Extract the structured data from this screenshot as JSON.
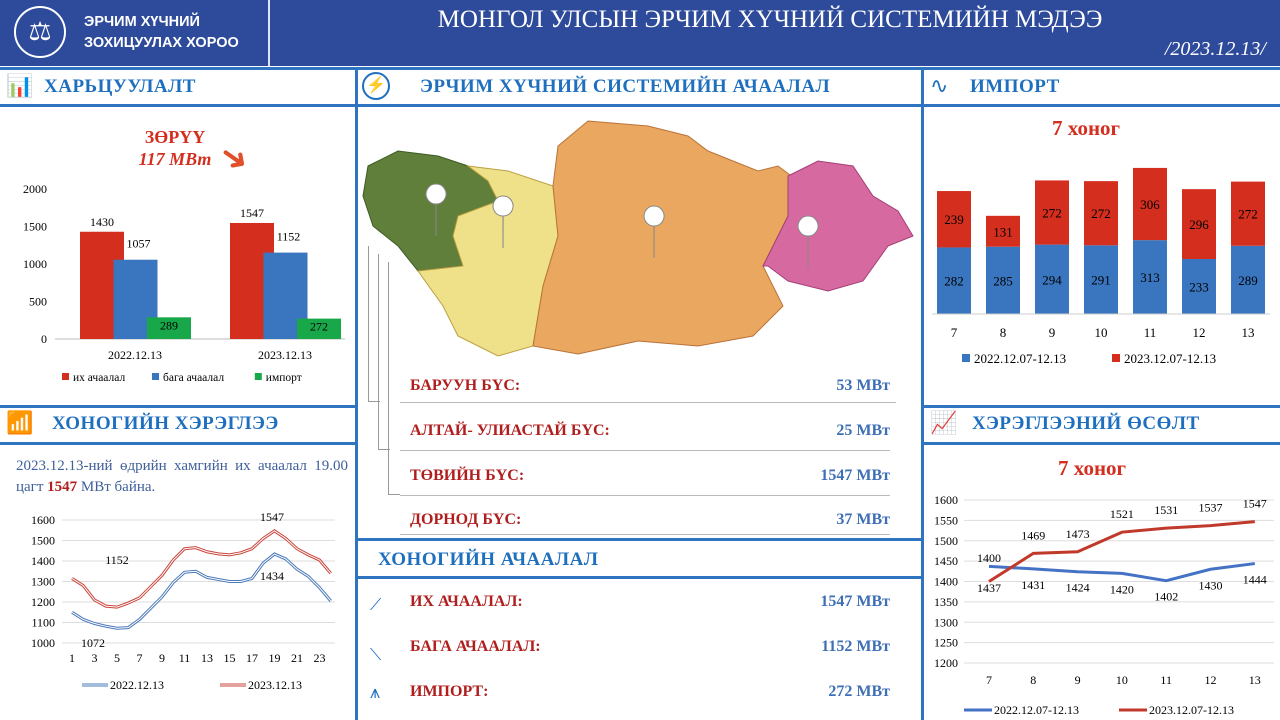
{
  "header": {
    "org_line1": "ЭРЧИМ ХҮЧНИЙ",
    "org_line2": "ЗОХИЦУУЛАХ ХОРОО",
    "title": "МОНГОЛ УЛСЫН ЭРЧИМ ХҮЧНИЙ СИСТЕМИЙН МЭДЭЭ",
    "date": "/2023.12.13/"
  },
  "panels": {
    "comparison": {
      "title": "ХАРЬЦУУЛАЛТ",
      "diff_label": "ЗӨРҮҮ",
      "diff_value": "117 МВт"
    },
    "daily_consumption": {
      "title": "ХОНОГИЙН ХЭРЭГЛЭЭ",
      "note_pre": "2023.12.13-ний өдрийн хамгийн их ачаалал 19.00 цагт ",
      "note_value": "1547",
      "note_post": " МВт байна."
    },
    "system_load": {
      "title": "ЭРЧИМ ХҮЧНИЙ СИСТЕМИЙН АЧААЛАЛ",
      "regions": [
        {
          "label": "БАРУУН БҮС:",
          "value": "53 МВт"
        },
        {
          "label": "АЛТАЙ- УЛИАСТАЙ БҮС:",
          "value": "25 МВт"
        },
        {
          "label": "ТӨВИЙН БҮС:",
          "value": "1547 МВт"
        },
        {
          "label": "ДОРНОД БҮС:",
          "value": "37 МВт"
        }
      ]
    },
    "daily_load": {
      "title": "ХОНОГИЙН АЧААЛАЛ",
      "items": [
        {
          "label": "ИХ АЧААЛАЛ:",
          "value": "1547 МВт",
          "icon": "chart-up-icon"
        },
        {
          "label": "БАГА АЧААЛАЛ:",
          "value": "1152 МВт",
          "icon": "chart-down-icon"
        },
        {
          "label": "ИМПОРТ:",
          "value": "272 МВт",
          "icon": "power-tower-icon"
        }
      ]
    },
    "import": {
      "title": "ИМПОРТ",
      "subtitle": "7 хоног"
    },
    "growth": {
      "title": "ХЭРЭГЛЭЭНИЙ ӨСӨЛТ",
      "subtitle": "7 хоног"
    }
  },
  "colors": {
    "header": "#2e4b9b",
    "accent": "#1f6fbf",
    "red": "#d42e1f",
    "blue": "#3a76bf",
    "green": "#18a84a"
  },
  "chart_data": [
    {
      "id": "comparison",
      "type": "bar",
      "categories": [
        "2022.12.13",
        "2023.12.13"
      ],
      "ylim": [
        0,
        2000
      ],
      "yticks": [
        0,
        500,
        1000,
        1500,
        2000
      ],
      "series": [
        {
          "name": "их ачаалал",
          "values": [
            1430,
            1547
          ]
        },
        {
          "name": "бага ачаалал",
          "values": [
            1057,
            1152
          ]
        },
        {
          "name": "импорт",
          "values": [
            289,
            272
          ]
        }
      ],
      "legend": "bottom"
    },
    {
      "id": "hourly",
      "type": "line",
      "x": [
        1,
        2,
        3,
        4,
        5,
        6,
        7,
        8,
        9,
        10,
        11,
        12,
        13,
        14,
        15,
        16,
        17,
        18,
        19,
        20,
        21,
        22,
        23,
        24
      ],
      "xticks": [
        1,
        3,
        5,
        7,
        9,
        11,
        13,
        15,
        17,
        19,
        21,
        23
      ],
      "ylim": [
        1000,
        1600
      ],
      "yticks": [
        1000,
        1100,
        1200,
        1300,
        1400,
        1500,
        1600
      ],
      "series": [
        {
          "name": "2022.12.13",
          "values": [
            1150,
            1115,
            1095,
            1082,
            1072,
            1075,
            1115,
            1170,
            1225,
            1295,
            1345,
            1350,
            1320,
            1310,
            1300,
            1300,
            1315,
            1390,
            1434,
            1410,
            1360,
            1325,
            1270,
            1205
          ]
        },
        {
          "name": "2023.12.13",
          "values": [
            1315,
            1280,
            1210,
            1180,
            1175,
            1195,
            1220,
            1275,
            1330,
            1405,
            1460,
            1465,
            1445,
            1435,
            1430,
            1440,
            1460,
            1510,
            1547,
            1510,
            1460,
            1430,
            1405,
            1340
          ]
        }
      ],
      "annotations": [
        "1152",
        "1072",
        "1547",
        "1434"
      ],
      "legend": "bottom"
    },
    {
      "id": "import",
      "type": "bar",
      "stacked": true,
      "categories": [
        "7",
        "8",
        "9",
        "10",
        "11",
        "12",
        "13"
      ],
      "series": [
        {
          "name": "2022.12.07-12.13",
          "values": [
            282,
            285,
            294,
            291,
            313,
            233,
            289
          ]
        },
        {
          "name": "2023.12.07-12.13",
          "values": [
            239,
            131,
            272,
            272,
            306,
            296,
            272
          ]
        }
      ],
      "legend": "bottom"
    },
    {
      "id": "growth",
      "type": "line",
      "categories": [
        "7",
        "8",
        "9",
        "10",
        "11",
        "12",
        "13"
      ],
      "ylim": [
        1200,
        1600
      ],
      "yticks": [
        1200,
        1250,
        1300,
        1350,
        1400,
        1450,
        1500,
        1550,
        1600
      ],
      "series": [
        {
          "name": "2022.12.07-12.13",
          "values": [
            1437,
            1431,
            1424,
            1420,
            1402,
            1430,
            1444
          ]
        },
        {
          "name": "2023.12.07-12.13",
          "values": [
            1400,
            1469,
            1473,
            1521,
            1531,
            1537,
            1547
          ]
        }
      ],
      "legend": "bottom"
    }
  ]
}
